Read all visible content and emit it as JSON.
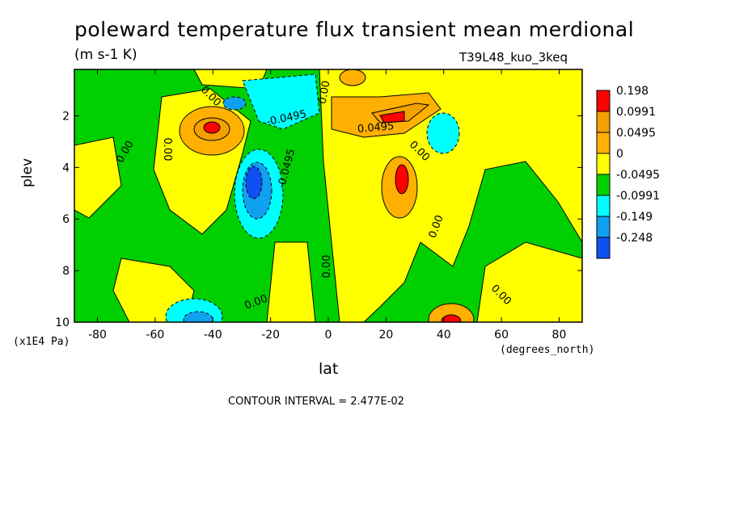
{
  "chart_data": {
    "type": "heatmap",
    "title": "poleward temperature flux transient mean merdional",
    "units": "(m s-1 K)",
    "run_label": "T39L48_kuo_3keq",
    "xlabel": "lat",
    "x_units": "(degrees_north)",
    "ylabel": "plev",
    "y_units": "(x1E4 Pa)",
    "x_ticks": [
      -80,
      -60,
      -40,
      -20,
      0,
      20,
      40,
      60,
      80
    ],
    "y_ticks": [
      2,
      4,
      6,
      8,
      10
    ],
    "x_range": [
      -88,
      88
    ],
    "y_range": [
      0.2,
      10
    ],
    "y_inverted": true,
    "contour_interval_text": "CONTOUR INTERVAL = 2.477E-02",
    "contour_labels": [
      "0.00",
      "0.00",
      "0.00",
      "0.00",
      "-0.0495",
      "-0.0495",
      "0.0495",
      "0.00",
      "0.00",
      "0.00",
      "0.00",
      "0.00"
    ],
    "levels": [
      {
        "label": "0.198",
        "color": "#ff0000"
      },
      {
        "label": "0.0991",
        "color": "#f3a000"
      },
      {
        "label": "0.0495",
        "color": "#ffb000"
      },
      {
        "label": "0",
        "color": "#ffff00"
      },
      {
        "label": "-0.0495",
        "color": "#00d000"
      },
      {
        "label": "-0.0991",
        "color": "#00ffff"
      },
      {
        "label": "-0.149",
        "color": "#10a0f0"
      },
      {
        "label": "-0.248",
        "color": "#1050f0"
      }
    ],
    "features": [
      {
        "lat": -38,
        "plev": 2.5,
        "value": 0.15
      },
      {
        "lat": 28,
        "plev": 2.0,
        "value": 0.15
      },
      {
        "lat": 27,
        "plev": 4.5,
        "value": 0.12
      },
      {
        "lat": 43,
        "plev": 9.9,
        "value": 0.12
      },
      {
        "lat": 8,
        "plev": 0.6,
        "value": 0.09
      },
      {
        "lat": -28,
        "plev": 4.5,
        "value": -0.2
      },
      {
        "lat": -42,
        "plev": 9.7,
        "value": -0.18
      },
      {
        "lat": -25,
        "plev": 1.4,
        "value": -0.09
      },
      {
        "lat": 42,
        "plev": 2.8,
        "value": -0.07
      }
    ]
  }
}
